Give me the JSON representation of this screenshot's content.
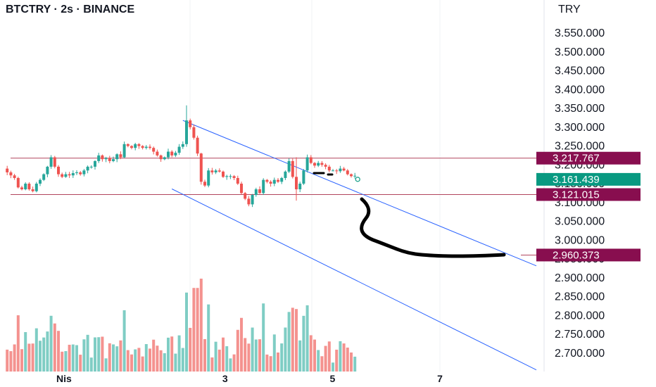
{
  "header": {
    "title": "BTCTRY · 2s · BINANCE",
    "currency": "TRY"
  },
  "colors": {
    "up": "#26a69a",
    "down": "#ef5350",
    "volume_up": "#7fcdc4",
    "volume_down": "#f4928f",
    "channel": "#2962ff",
    "level_line": "#b2455d",
    "level_badge": "#880e4f",
    "last_price_badge": "#089981",
    "drawing": "#000000"
  },
  "chart_data": {
    "type": "candlestick",
    "symbol": "BTCTRY",
    "interval": "2s",
    "exchange": "BINANCE",
    "y_axis": {
      "currency": "TRY",
      "ticks": [
        "3.550.000",
        "3.500.000",
        "3.450.000",
        "3.400.000",
        "3.350.000",
        "3.300.000",
        "3.250.000",
        "3.200.000",
        "3.150.000",
        "3.100.000",
        "3.050.000",
        "3.000.000",
        "2.950.000",
        "2.900.000",
        "2.850.000",
        "2.800.000",
        "2.750.000",
        "2.700.000"
      ],
      "tick_values": [
        3550000,
        3500000,
        3450000,
        3400000,
        3350000,
        3300000,
        3250000,
        3200000,
        3150000,
        3100000,
        3050000,
        3000000,
        2950000,
        2900000,
        2850000,
        2800000,
        2750000,
        2700000
      ],
      "range": [
        2700000,
        3550000
      ]
    },
    "x_axis": {
      "ticks": [
        "Nis",
        "3",
        "5",
        "7"
      ],
      "tick_positions": [
        0,
        44,
        72,
        100
      ]
    },
    "candles": {
      "price_path": [
        3190000,
        3180000,
        3172000,
        3165000,
        3140000,
        3135000,
        3150000,
        3135000,
        3130000,
        3150000,
        3160000,
        3175000,
        3195000,
        3220000,
        3195000,
        3175000,
        3168000,
        3175000,
        3172000,
        3178000,
        3180000,
        3175000,
        3185000,
        3195000,
        3195000,
        3210000,
        3225000,
        3215000,
        3218000,
        3210000,
        3215000,
        3228000,
        3220000,
        3255000,
        3250000,
        3245000,
        3255000,
        3250000,
        3245000,
        3248000,
        3245000,
        3235000,
        3225000,
        3215000,
        3220000,
        3235000,
        3225000,
        3232000,
        3248000,
        3255000,
        3318000,
        3300000,
        3272000,
        3230000,
        3155000,
        3145000,
        3185000,
        3180000,
        3185000,
        3182000,
        3168000,
        3170000,
        3170000,
        3165000,
        3150000,
        3125000,
        3110000,
        3095000,
        3120000,
        3135000,
        3125000,
        3160000,
        3155000,
        3150000,
        3160000,
        3155000,
        3165000,
        3182000,
        3210000,
        3168000,
        3135000,
        3150000,
        3185000,
        3220000,
        3205000,
        3198000,
        3205000,
        3200000,
        3195000,
        3185000,
        3185000,
        3183000,
        3190000,
        3185000,
        3175000,
        3170000,
        3171000
      ],
      "spikes": [
        {
          "index": 50,
          "high": 3358000,
          "low": 3290000
        },
        {
          "index": 68,
          "high": 3092000,
          "low": 3088000
        },
        {
          "index": 80,
          "high": 3220000,
          "low": 3105000
        }
      ]
    },
    "volume": {
      "scale_note": "relative",
      "last_bar": 0.16
    },
    "channel_lines": [
      {
        "label": "upper",
        "from_index": 49,
        "from_price": 3318000,
        "to_index": 98,
        "to_price": 3122000,
        "extend_to_date": "beyond 7"
      },
      {
        "label": "lower",
        "from_index": 46,
        "from_price": 3136000,
        "to_index": 98,
        "to_price": 2885000,
        "extend_to_date": "beyond 7"
      }
    ],
    "horizontal_levels": [
      {
        "price": 3217767,
        "label": "3.217.767"
      },
      {
        "price": 3121015,
        "label": "3.121.015"
      },
      {
        "price": 2960373,
        "label": "2.960.373"
      }
    ],
    "last_price": {
      "price": 3161439,
      "label": "3.161.439"
    }
  }
}
